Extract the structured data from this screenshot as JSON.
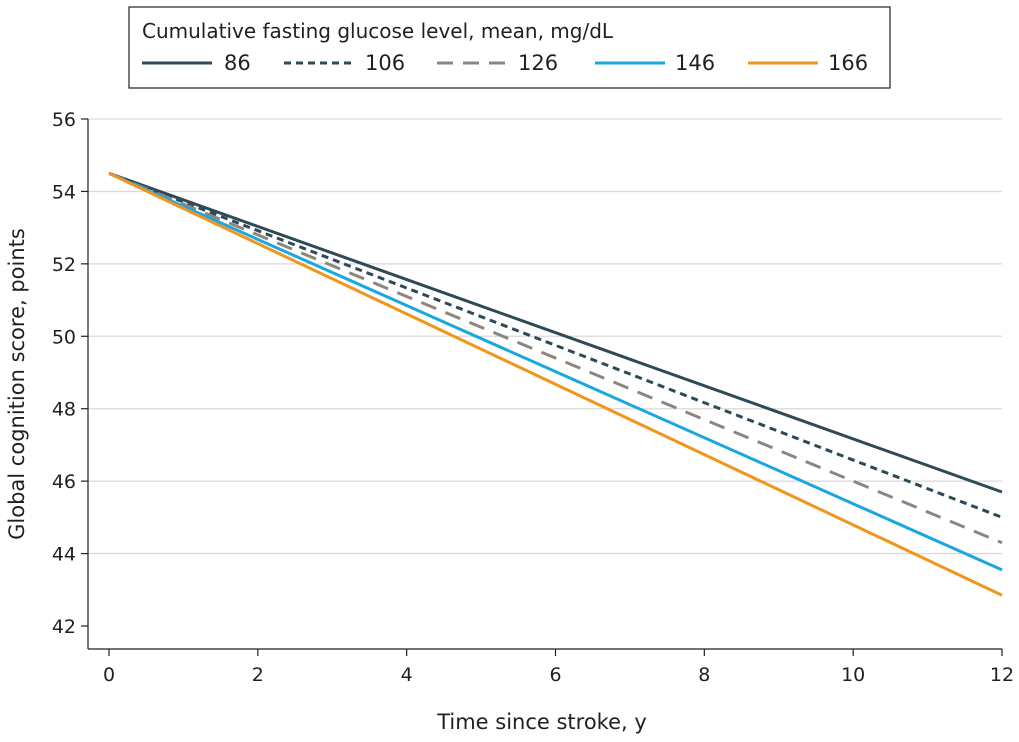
{
  "chart_data": {
    "type": "line",
    "title": "",
    "xlabel": "Time since stroke, y",
    "ylabel": "Global cognition score, points",
    "xlim": [
      0,
      12
    ],
    "ylim": [
      42,
      56
    ],
    "xticks": [
      "0",
      "2",
      "4",
      "6",
      "8",
      "10",
      "12"
    ],
    "yticks": [
      "42",
      "44",
      "46",
      "48",
      "50",
      "52",
      "54",
      "56"
    ],
    "grid": "horizontal",
    "legend": {
      "title": "Cumulative fasting glucose level, mean, mg/dL",
      "placement": "top"
    },
    "series": [
      {
        "name": "86",
        "x": [
          0,
          12
        ],
        "y": [
          54.5,
          45.7
        ],
        "color": "#2e4a57",
        "style": "solid"
      },
      {
        "name": "106",
        "x": [
          0,
          12
        ],
        "y": [
          54.5,
          45.0
        ],
        "color": "#2e4a57",
        "style": "dotted"
      },
      {
        "name": "126",
        "x": [
          0,
          12
        ],
        "y": [
          54.5,
          44.3
        ],
        "color": "#8c877e",
        "style": "dashed"
      },
      {
        "name": "146",
        "x": [
          0,
          12
        ],
        "y": [
          54.5,
          43.55
        ],
        "color": "#1aa7e1",
        "style": "solid"
      },
      {
        "name": "166",
        "x": [
          0,
          12
        ],
        "y": [
          54.5,
          42.85
        ],
        "color": "#f0961e",
        "style": "solid"
      }
    ]
  }
}
